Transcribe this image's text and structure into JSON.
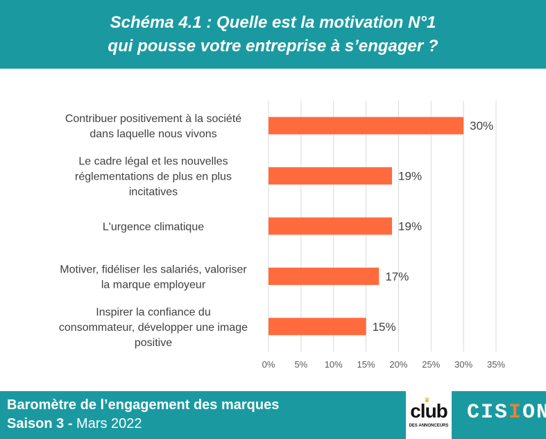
{
  "header": {
    "title_line1": "Schéma 4.1 : Quelle est la motivation N°1",
    "title_line2": "qui pousse votre entreprise à s’engager ?"
  },
  "chart_data": {
    "type": "bar",
    "orientation": "horizontal",
    "categories": [
      [
        "Contribuer positivement à la société",
        "dans laquelle nous vivons"
      ],
      [
        "Le cadre légal et les nouvelles",
        "réglementations de plus en plus",
        "incitatives"
      ],
      [
        "L'urgence climatique"
      ],
      [
        "Motiver, fidéliser les salariés, valoriser",
        "la marque employeur"
      ],
      [
        "Inspirer la confiance du",
        "consommateur, développer une image",
        "positive"
      ]
    ],
    "values": [
      30,
      19,
      19,
      17,
      15
    ],
    "value_labels": [
      "30%",
      "19%",
      "19%",
      "17%",
      "15%"
    ],
    "xlim": [
      0,
      35
    ],
    "x_ticks": [
      0,
      5,
      10,
      15,
      20,
      25,
      30,
      35
    ],
    "x_tick_labels": [
      "0%",
      "5%",
      "10%",
      "15%",
      "20%",
      "25%",
      "30%",
      "35%"
    ],
    "grid": true,
    "bar_color": "#ff6b3d",
    "grid_color": "#d9d9d9"
  },
  "footer": {
    "line1": "Baromètre de l’engagement des marques",
    "line2_bold": "Saison 3 -",
    "line2_rest": " Mars 2022"
  },
  "logos": {
    "club_word": "club",
    "club_sub": "DES ANNONCEURS",
    "cision_pre": "CIS",
    "cision_accent": "I",
    "cision_post": "ON",
    "cision_tm": "™"
  },
  "colors": {
    "brand_teal": "#1a9aa0",
    "bar_orange": "#ff6b3d",
    "cision_accent": "#f07f2e"
  }
}
